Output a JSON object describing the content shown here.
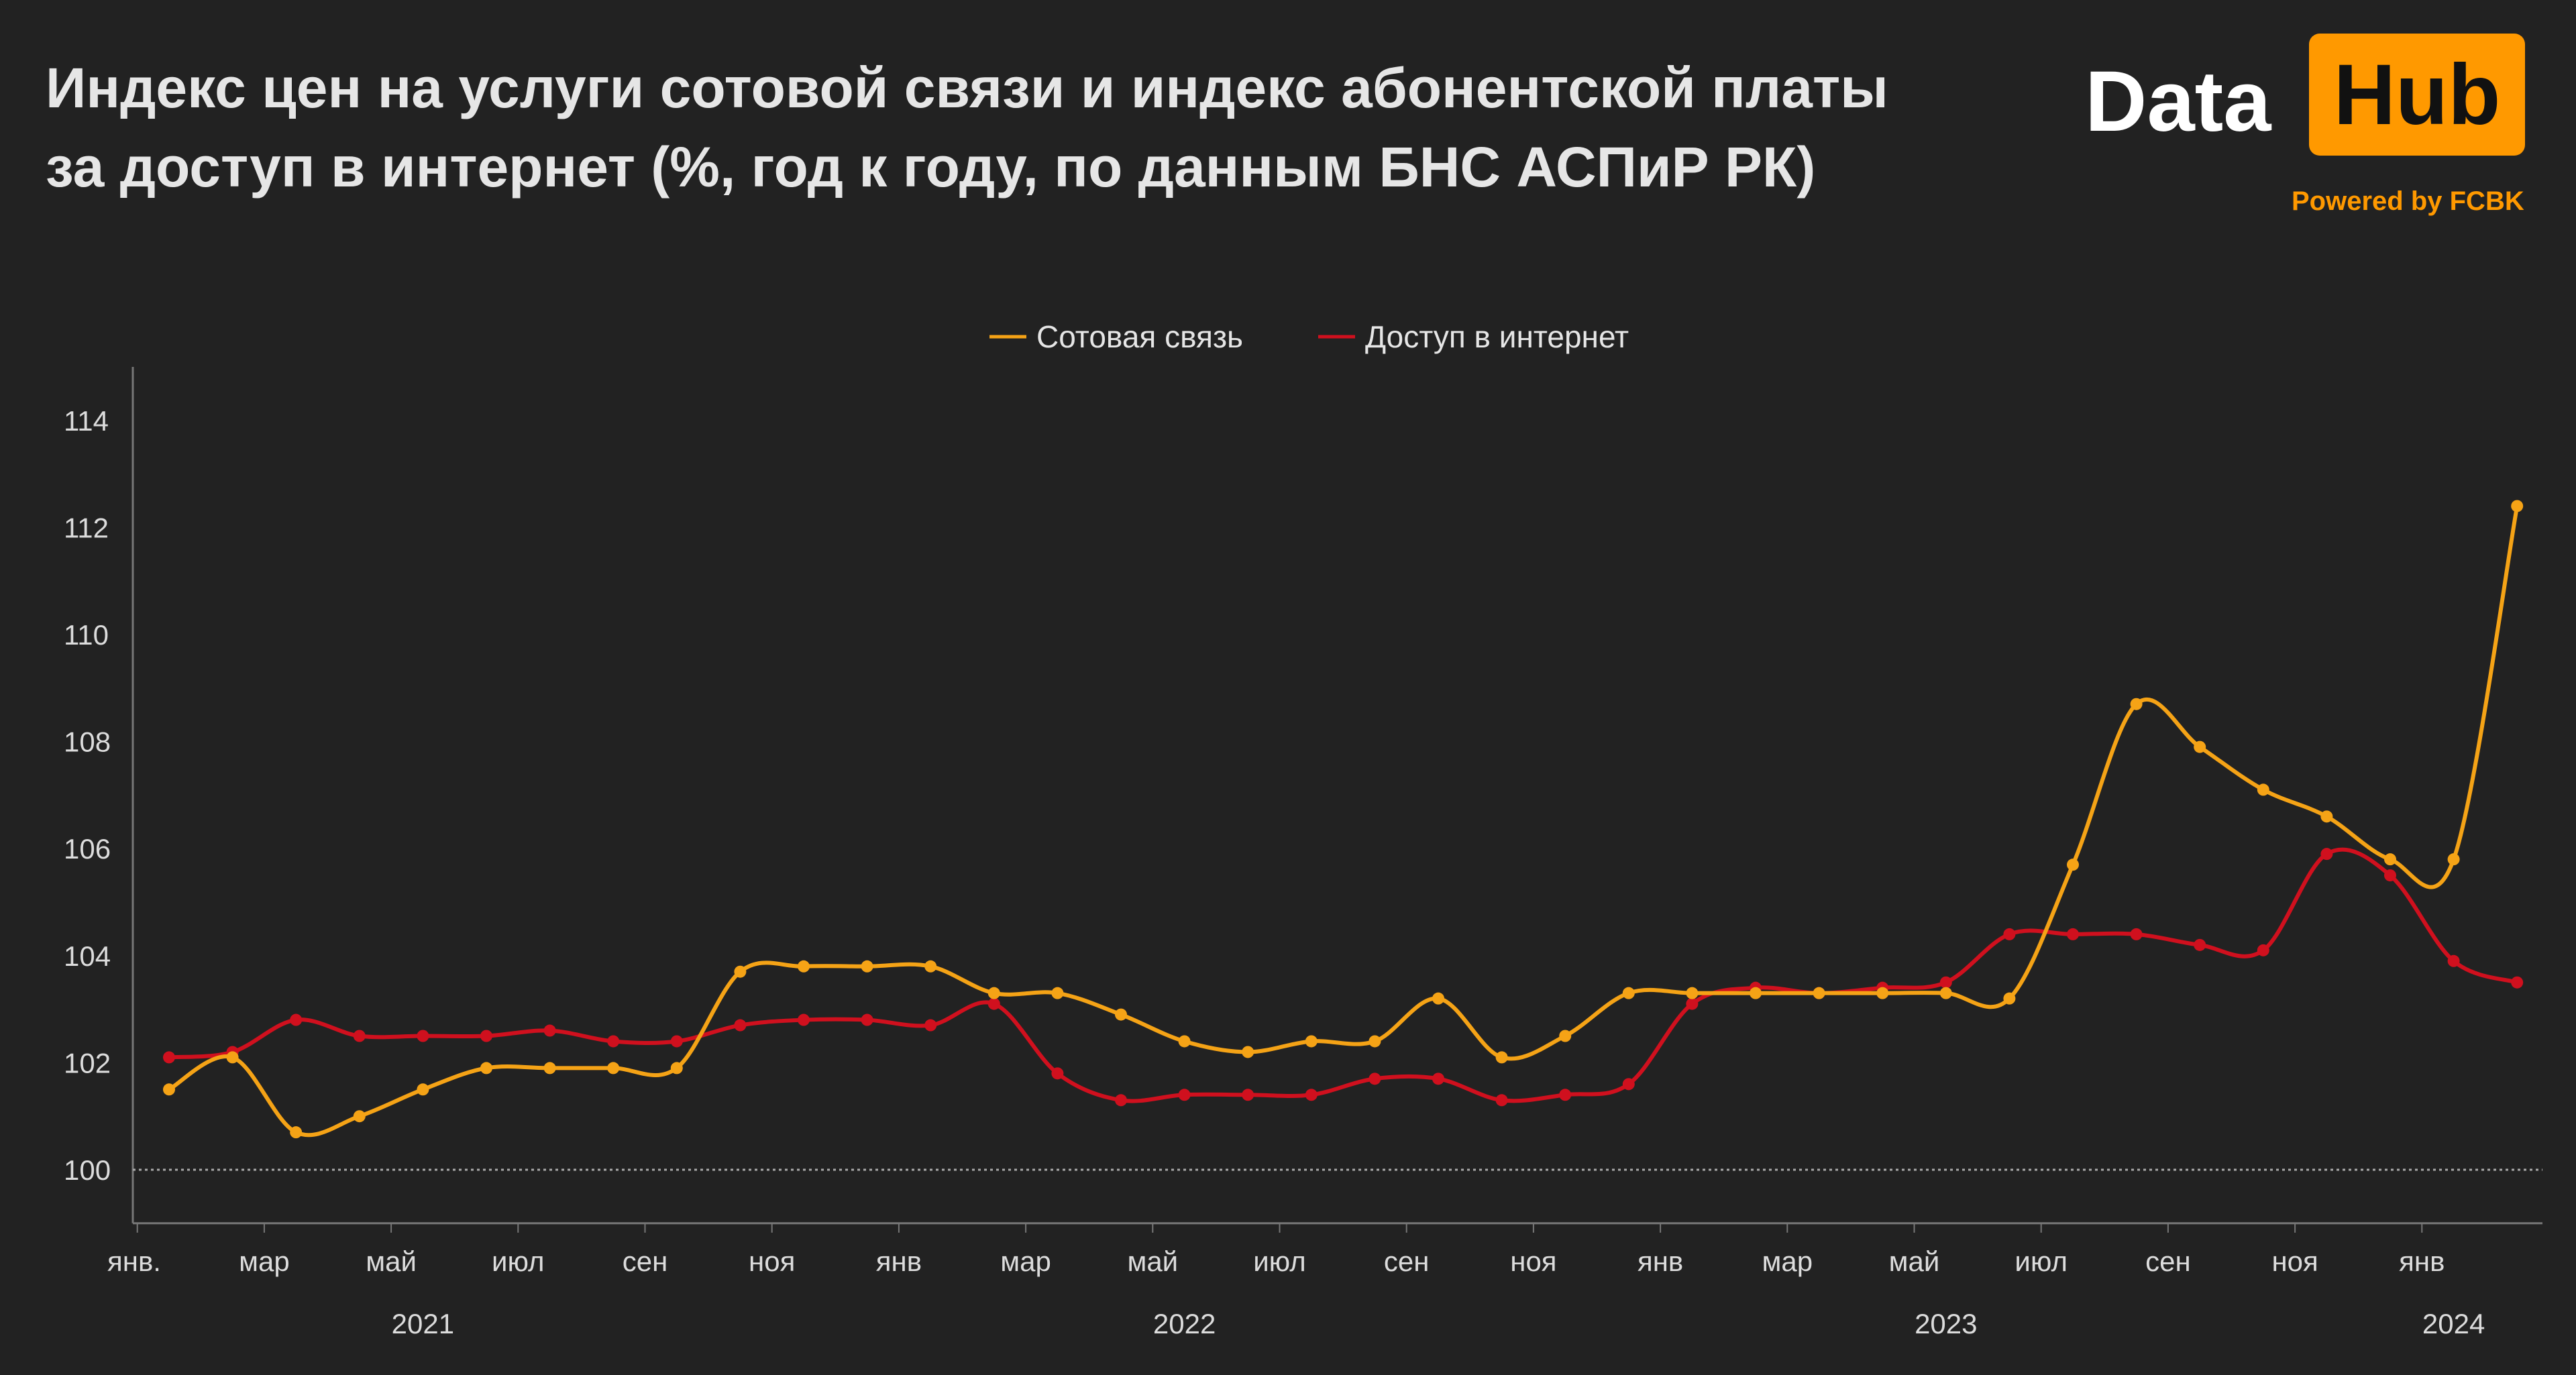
{
  "header": {
    "title_line1": "Индекс цен на услуги сотовой связи и индекс абонентской платы",
    "title_line2": "за доступ в интернет (%, год к году, по данным БНС АСПиР РК)"
  },
  "logo": {
    "data": "Data",
    "hub": "Hub",
    "powered": "Powered by FCBK",
    "accent": "#ff9900"
  },
  "chart_data": {
    "type": "line",
    "title": "Индекс цен на услуги сотовой связи и индекс абонентской платы за доступ в интернет (%, год к году, по данным БНС АСПиР РК)",
    "x": [
      "2021-01",
      "2021-02",
      "2021-03",
      "2021-04",
      "2021-05",
      "2021-06",
      "2021-07",
      "2021-08",
      "2021-09",
      "2021-10",
      "2021-11",
      "2021-12",
      "2022-01",
      "2022-02",
      "2022-03",
      "2022-04",
      "2022-05",
      "2022-06",
      "2022-07",
      "2022-08",
      "2022-09",
      "2022-10",
      "2022-11",
      "2022-12",
      "2023-01",
      "2023-02",
      "2023-03",
      "2023-04",
      "2023-05",
      "2023-06",
      "2023-07",
      "2023-08",
      "2023-09",
      "2023-10",
      "2023-11",
      "2023-12",
      "2024-01",
      "2024-02"
    ],
    "series": [
      {
        "name": "Сотовая связь",
        "color": "#f5a316",
        "values": [
          101.5,
          102.1,
          100.7,
          101.0,
          101.5,
          101.9,
          101.9,
          101.9,
          101.9,
          103.7,
          103.8,
          103.8,
          103.8,
          103.3,
          103.3,
          102.9,
          102.4,
          102.2,
          102.4,
          102.4,
          103.2,
          102.1,
          102.5,
          103.3,
          103.3,
          103.3,
          103.3,
          103.3,
          103.3,
          103.2,
          105.7,
          108.7,
          107.9,
          107.1,
          106.6,
          105.8,
          105.8,
          112.4
        ]
      },
      {
        "name": "Доступ в интернет",
        "color": "#d0101e",
        "values": [
          102.1,
          102.2,
          102.8,
          102.5,
          102.5,
          102.5,
          102.6,
          102.4,
          102.4,
          102.7,
          102.8,
          102.8,
          102.7,
          103.1,
          101.8,
          101.3,
          101.4,
          101.4,
          101.4,
          101.7,
          101.7,
          101.3,
          101.4,
          101.6,
          103.1,
          103.4,
          103.3,
          103.4,
          103.5,
          104.4,
          104.4,
          104.4,
          104.2,
          104.1,
          105.9,
          105.5,
          103.9,
          103.5
        ]
      }
    ],
    "yticks": [
      "100",
      "102",
      "104",
      "106",
      "108",
      "110",
      "112",
      "114"
    ],
    "ylim": [
      99,
      115
    ],
    "reference_line": 100,
    "xticks": [
      {
        "month": 0,
        "label": "янв."
      },
      {
        "month": 2,
        "label": "мар"
      },
      {
        "month": 4,
        "label": "май"
      },
      {
        "month": 6,
        "label": "июл"
      },
      {
        "month": 8,
        "label": "сен"
      },
      {
        "month": 10,
        "label": "ноя"
      },
      {
        "month": 12,
        "label": "янв"
      },
      {
        "month": 14,
        "label": "мар"
      },
      {
        "month": 16,
        "label": "май"
      },
      {
        "month": 18,
        "label": "июл"
      },
      {
        "month": 20,
        "label": "сен"
      },
      {
        "month": 22,
        "label": "ноя"
      },
      {
        "month": 24,
        "label": "янв"
      },
      {
        "month": 26,
        "label": "мар"
      },
      {
        "month": 28,
        "label": "май"
      },
      {
        "month": 30,
        "label": "июл"
      },
      {
        "month": 32,
        "label": "сен"
      },
      {
        "month": 34,
        "label": "ноя"
      },
      {
        "month": 36,
        "label": "янв"
      }
    ],
    "years": [
      {
        "month": 4.5,
        "label": "2021"
      },
      {
        "month": 16.5,
        "label": "2022"
      },
      {
        "month": 28.5,
        "label": "2023"
      },
      {
        "month": 36.5,
        "label": "2024"
      }
    ],
    "legend": "top",
    "grid": false,
    "xlabel": "",
    "ylabel": ""
  }
}
